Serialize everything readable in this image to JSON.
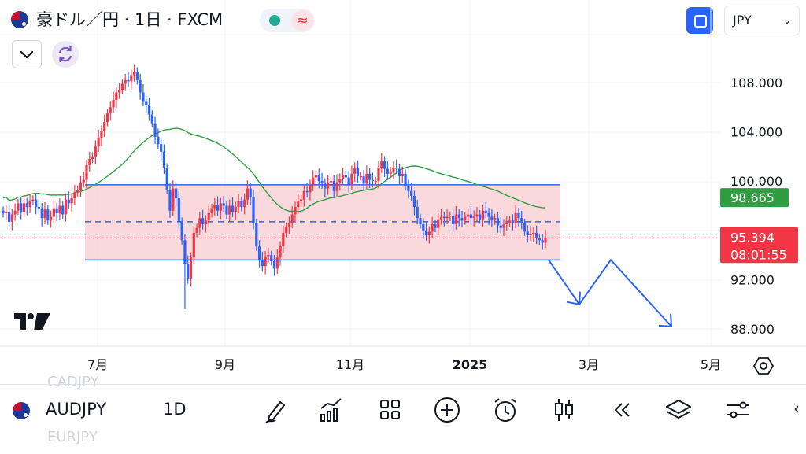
{
  "header": {
    "title": "豪ドル／円 · 1日 · FXCM",
    "status_icon": "≈",
    "currency": "JPY"
  },
  "price_axis": {
    "labels": [
      "108.000",
      "104.000",
      "100.000",
      "92.000",
      "88.000"
    ],
    "ma_price": "98.665",
    "last_price": "95.394",
    "countdown": "08:01:55",
    "ma_color": "#2e9e41",
    "last_color": "#f23645"
  },
  "time_axis": {
    "labels": [
      "7月",
      "9月",
      "11月",
      "2025",
      "3月",
      "5月"
    ]
  },
  "chart_data": {
    "type": "candlestick",
    "symbol": "AUDJPY",
    "interval": "1D",
    "ylim": [
      85.5,
      110.5
    ],
    "last_close": 95.394,
    "moving_average_last": 98.665,
    "range_box": {
      "top": 99.7,
      "mid": 96.7,
      "bottom": 93.6,
      "fill": "#f9d2d6",
      "border": "#2962ff"
    },
    "projection_arrow_prices": [
      93.6,
      90.0,
      93.6,
      88.2
    ],
    "candles_close": [
      97.4,
      97.5,
      96.7,
      97.3,
      97.6,
      98.2,
      97.5,
      98.2,
      97.9,
      98.4,
      98.5,
      97.9,
      97.8,
      97.0,
      97.7,
      96.8,
      97.1,
      97.8,
      97.4,
      98.0,
      97.3,
      98.5,
      98.2,
      98.6,
      99.1,
      99.3,
      99.9,
      100.1,
      101.3,
      101.8,
      102.0,
      102.8,
      103.5,
      104.1,
      104.8,
      105.5,
      106.0,
      106.6,
      107.2,
      107.4,
      107.9,
      108.2,
      108.1,
      108.6,
      108.9,
      108.2,
      107.2,
      106.5,
      106.2,
      105.4,
      104.7,
      103.6,
      103.0,
      102.4,
      101.1,
      99.3,
      97.6,
      99.4,
      98.6,
      96.7,
      95.2,
      93.3,
      92.1,
      93.8,
      95.8,
      96.2,
      97.0,
      96.5,
      96.8,
      97.4,
      97.8,
      98.1,
      97.6,
      98.2,
      98.0,
      97.3,
      98.0,
      97.5,
      97.9,
      98.4,
      97.9,
      98.5,
      99.4,
      98.7,
      96.6,
      94.7,
      93.6,
      93.1,
      93.9,
      94.0,
      93.5,
      92.9,
      93.8,
      94.7,
      95.8,
      96.3,
      96.6,
      97.3,
      97.9,
      98.4,
      98.5,
      99.2,
      99.1,
      99.7,
      100.3,
      100.5,
      100.0,
      99.8,
      99.4,
      99.9,
      100.0,
      99.2,
      99.9,
      100.2,
      100.5,
      100.3,
      99.7,
      100.6,
      101.1,
      100.4,
      100.4,
      99.8,
      100.6,
      100.1,
      100.0,
      100.0,
      101.1,
      101.6,
      101.0,
      100.6,
      100.8,
      101.1,
      101.0,
      100.4,
      100.6,
      99.6,
      99.2,
      98.8,
      97.9,
      97.0,
      96.5,
      96.0,
      95.6,
      95.9,
      96.5,
      96.2,
      96.9,
      97.1,
      97.0,
      97.1,
      97.2,
      96.5,
      97.3,
      97.0,
      96.8,
      97.1,
      97.3,
      97.0,
      97.2,
      97.3,
      96.9,
      97.6,
      97.4,
      97.1,
      96.8,
      97.0,
      96.4,
      96.2,
      96.5,
      96.6,
      96.8,
      96.6,
      97.4,
      97.0,
      96.6,
      95.9,
      95.6,
      95.7,
      95.8,
      95.4,
      95.2,
      95.0,
      95.394
    ]
  },
  "bottom_bar": {
    "ghost_top": "CADJPY",
    "symbol": "AUDJPY",
    "interval": "1D",
    "ghost_bottom": "EURJPY",
    "tools": [
      "brush-icon",
      "indicators-icon",
      "layout-grid-icon",
      "add-circle-icon",
      "alarm-icon",
      "candlestick-icon",
      "replay-icon",
      "layers-icon",
      "settings-sliders-icon"
    ],
    "scroll_arrow": "‹"
  }
}
